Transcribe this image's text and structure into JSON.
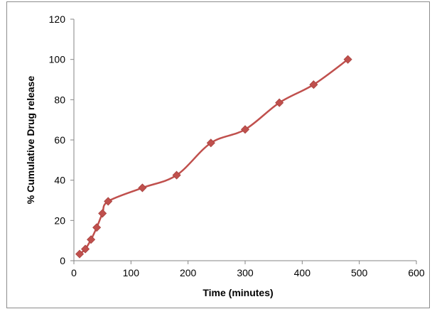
{
  "chart_data": {
    "type": "line",
    "title": "",
    "xlabel": "Time (minutes)",
    "ylabel": "% Cumulative Drug release",
    "xlim": [
      0,
      600
    ],
    "ylim": [
      0,
      120
    ],
    "xticks": [
      0,
      100,
      200,
      300,
      400,
      500,
      600
    ],
    "yticks": [
      0,
      20,
      40,
      60,
      80,
      100,
      120
    ],
    "grid": false,
    "legend": "none",
    "series": [
      {
        "color": "#c0504d",
        "marker": "diamond",
        "smooth": true,
        "x": [
          10,
          20,
          30,
          40,
          50,
          60,
          120,
          180,
          240,
          300,
          360,
          420,
          480
        ],
        "y": [
          3.3,
          5.8,
          10.5,
          16.5,
          23.5,
          29.5,
          36.2,
          42.5,
          58.5,
          65.2,
          78.5,
          87.5,
          100
        ]
      }
    ]
  }
}
